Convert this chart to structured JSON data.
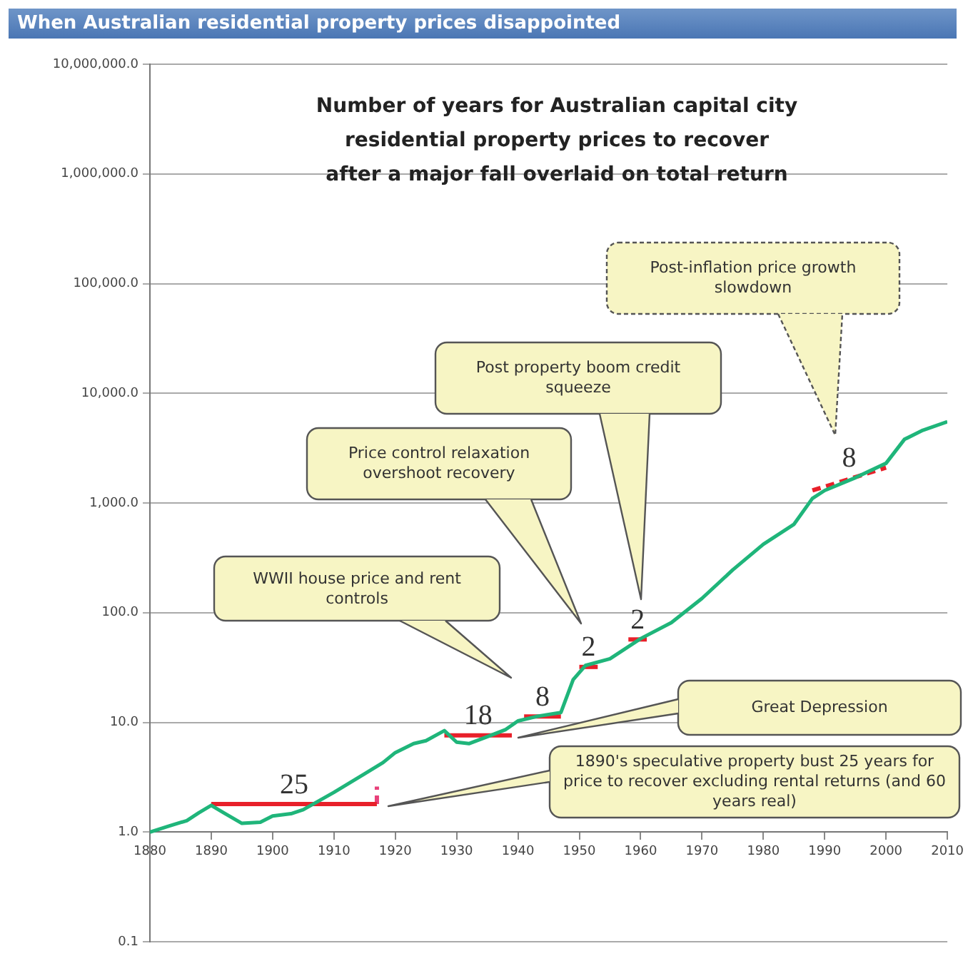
{
  "chart_data": {
    "type": "line",
    "title": "When Australian residential property prices disappointed",
    "subtitle": "Number of years for Australian capital city residential property prices to recover after a major fall overlaid on total return",
    "xlim": [
      1880,
      2010
    ],
    "xticks": [
      1880,
      1890,
      1900,
      1910,
      1920,
      1930,
      1940,
      1950,
      1960,
      1970,
      1980,
      1990,
      2000,
      2010
    ],
    "ylim": [
      0.1,
      10000000
    ],
    "log": true,
    "grid": "y",
    "yticks": [
      {
        "value": 0.1,
        "label": "0.1"
      },
      {
        "value": 1,
        "label": "1.0"
      },
      {
        "value": 10,
        "label": "10.0"
      },
      {
        "value": 100,
        "label": "100.0"
      },
      {
        "value": 1000,
        "label": "1,000.0"
      },
      {
        "value": 10000,
        "label": "10,000.0"
      },
      {
        "value": 100000,
        "label": "100,000.0"
      },
      {
        "value": 1000000,
        "label": "1,000,000.0"
      },
      {
        "value": 10000000,
        "label": "10,000,000.0"
      }
    ],
    "series": [
      {
        "color": "#1fb57a",
        "x": [
          1880,
          1883,
          1886,
          1888,
          1890,
          1892,
          1895,
          1898,
          1900,
          1903,
          1905,
          1910,
          1915,
          1918,
          1920,
          1923,
          1925,
          1928,
          1930,
          1932,
          1935,
          1938,
          1940,
          1943,
          1947,
          1949,
          1951,
          1955,
          1960,
          1965,
          1970,
          1975,
          1980,
          1985,
          1988,
          1990,
          1995,
          2000,
          2003,
          2006,
          2010
        ],
        "values": [
          1.0,
          1.13,
          1.27,
          1.5,
          1.75,
          1.5,
          1.2,
          1.23,
          1.4,
          1.47,
          1.6,
          2.3,
          3.4,
          4.3,
          5.3,
          6.4,
          6.8,
          8.4,
          6.6,
          6.4,
          7.4,
          8.6,
          10.3,
          11.3,
          12.3,
          24.5,
          33,
          38,
          58,
          81,
          135,
          245,
          420,
          640,
          1100,
          1300,
          1700,
          2300,
          3800,
          4600,
          5500
        ]
      },
      {
        "color": "#e8202a",
        "x": [
          1890,
          1917
        ],
        "values": [
          1.8,
          1.8
        ]
      },
      {
        "color": "#e8407a",
        "x": [
          1917,
          1917
        ],
        "values": [
          1.8,
          2.6
        ],
        "line_style": "dashed"
      },
      {
        "color": "#e8202a",
        "x": [
          1928,
          1939
        ],
        "values": [
          7.6,
          7.6
        ]
      },
      {
        "color": "#e8202a",
        "x": [
          1941,
          1947
        ],
        "values": [
          11.3,
          11.3
        ]
      },
      {
        "color": "#e8202a",
        "x": [
          1950,
          1953
        ],
        "values": [
          32,
          32
        ]
      },
      {
        "color": "#e8202a",
        "x": [
          1958,
          1961
        ],
        "values": [
          57,
          57
        ]
      },
      {
        "color": "#e8202a",
        "x": [
          1988,
          2000
        ],
        "values": [
          1300,
          2100
        ],
        "line_style": "dashed"
      }
    ],
    "annotations": [
      "WWII house price and rent controls",
      "Price control relaxation overshoot recovery",
      "Post property boom credit squeeze",
      "Post-inflation price growth slowdown",
      "Great Depression",
      "1890's speculative property bust 25 years for price to recover excluding rental returns (and 60 years real)",
      {
        "text": "25",
        "x": 1903.5,
        "y": 1.8
      },
      {
        "text": "18",
        "x": 1933.5,
        "y": 7.6
      },
      {
        "text": "8",
        "x": 1944,
        "y": 11.3
      },
      {
        "text": "2",
        "x": 1951.5,
        "y": 32
      },
      {
        "text": "2",
        "x": 1959.5,
        "y": 57
      },
      {
        "text": "8",
        "x": 1994,
        "y": 1700
      }
    ]
  }
}
